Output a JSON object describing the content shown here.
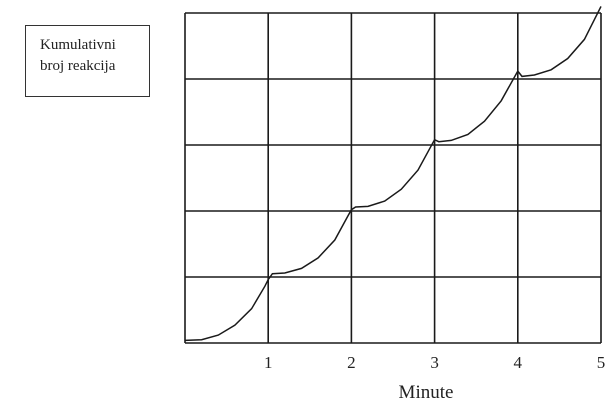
{
  "chart_data": {
    "type": "line",
    "title": "",
    "xlabel": "Minute",
    "ylabel_lines": [
      "Kumulativni",
      "broj reakcija"
    ],
    "x_ticks": [
      "1",
      "2",
      "3",
      "4",
      "5"
    ],
    "xlim": [
      0,
      5
    ],
    "ylim": [
      0,
      5
    ],
    "grid": true,
    "series": [
      {
        "points": [
          [
            0.0,
            0.04
          ],
          [
            0.2,
            0.05
          ],
          [
            0.4,
            0.12
          ],
          [
            0.6,
            0.27
          ],
          [
            0.8,
            0.52
          ],
          [
            0.96,
            0.86
          ],
          [
            1.0,
            0.96
          ],
          [
            1.05,
            1.05
          ],
          [
            1.2,
            1.06
          ],
          [
            1.4,
            1.13
          ],
          [
            1.6,
            1.29
          ],
          [
            1.8,
            1.56
          ],
          [
            1.96,
            1.93
          ],
          [
            2.0,
            2.02
          ],
          [
            2.05,
            2.06
          ],
          [
            2.2,
            2.07
          ],
          [
            2.4,
            2.15
          ],
          [
            2.6,
            2.33
          ],
          [
            2.8,
            2.62
          ],
          [
            2.96,
            2.99
          ],
          [
            3.0,
            3.08
          ],
          [
            3.05,
            3.05
          ],
          [
            3.2,
            3.07
          ],
          [
            3.4,
            3.16
          ],
          [
            3.6,
            3.36
          ],
          [
            3.8,
            3.67
          ],
          [
            3.96,
            4.03
          ],
          [
            4.0,
            4.12
          ],
          [
            4.05,
            4.04
          ],
          [
            4.2,
            4.06
          ],
          [
            4.4,
            4.14
          ],
          [
            4.6,
            4.31
          ],
          [
            4.8,
            4.6
          ],
          [
            5.0,
            5.1
          ]
        ]
      }
    ]
  }
}
